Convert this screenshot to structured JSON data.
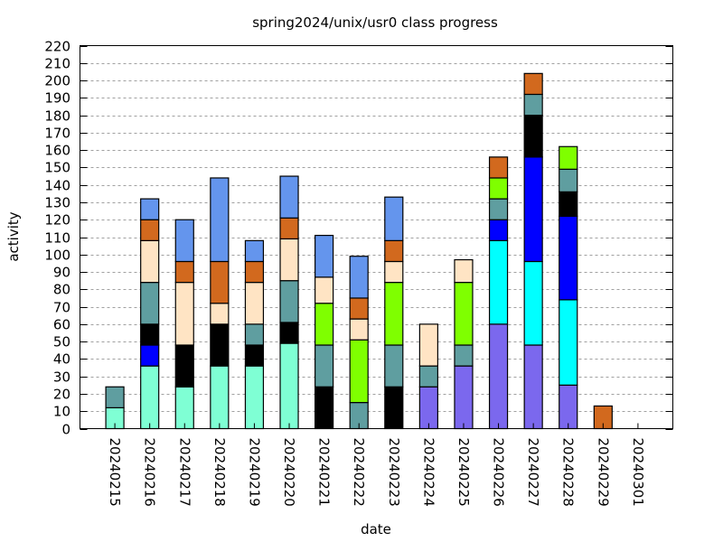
{
  "chart_data": {
    "type": "bar",
    "stacked": true,
    "title": "spring2024/unix/usr0 class progress",
    "xlabel": "date",
    "ylabel": "activity",
    "ylim": [
      0,
      220
    ],
    "ytick_step": 10,
    "grid": true,
    "legend": "none",
    "categories": [
      "20240215",
      "20240216",
      "20240217",
      "20240218",
      "20240219",
      "20240220",
      "20240221",
      "20240222",
      "20240223",
      "20240224",
      "20240225",
      "20240226",
      "20240227",
      "20240228",
      "20240229",
      "20240301"
    ],
    "series": [
      {
        "color": "#7b68ee",
        "values": [
          0,
          0,
          0,
          0,
          0,
          0,
          0,
          0,
          0,
          24,
          36,
          60,
          48,
          25,
          0,
          0
        ]
      },
      {
        "color": "#00ffff",
        "values": [
          0,
          0,
          0,
          0,
          0,
          0,
          0,
          0,
          0,
          0,
          0,
          48,
          48,
          49,
          0,
          0
        ]
      },
      {
        "color": "#7fffd4",
        "values": [
          12,
          36,
          24,
          36,
          36,
          49,
          0,
          0,
          0,
          0,
          0,
          0,
          0,
          0,
          0,
          0
        ]
      },
      {
        "color": "#0000ff",
        "values": [
          0,
          12,
          0,
          0,
          0,
          0,
          0,
          0,
          0,
          0,
          0,
          12,
          60,
          48,
          0,
          0
        ]
      },
      {
        "color": "#000000",
        "values": [
          0,
          12,
          24,
          24,
          12,
          12,
          24,
          0,
          24,
          0,
          0,
          0,
          24,
          14,
          0,
          0
        ]
      },
      {
        "color": "#5f9ea0",
        "values": [
          12,
          24,
          0,
          0,
          12,
          24,
          24,
          15,
          24,
          12,
          12,
          12,
          12,
          13,
          0,
          0
        ]
      },
      {
        "color": "#7fff00",
        "values": [
          0,
          0,
          0,
          0,
          0,
          0,
          24,
          36,
          36,
          0,
          36,
          12,
          0,
          13,
          0,
          0
        ]
      },
      {
        "color": "#ffe4c4",
        "values": [
          0,
          24,
          36,
          12,
          24,
          24,
          15,
          12,
          12,
          24,
          13,
          0,
          0,
          0,
          0,
          0
        ]
      },
      {
        "color": "#d2691e",
        "values": [
          0,
          12,
          12,
          24,
          12,
          12,
          0,
          12,
          12,
          0,
          0,
          12,
          12,
          0,
          13,
          0
        ]
      },
      {
        "color": "#6495ed",
        "values": [
          0,
          12,
          24,
          48,
          12,
          24,
          24,
          24,
          25,
          0,
          0,
          0,
          0,
          0,
          0,
          0
        ]
      }
    ]
  }
}
